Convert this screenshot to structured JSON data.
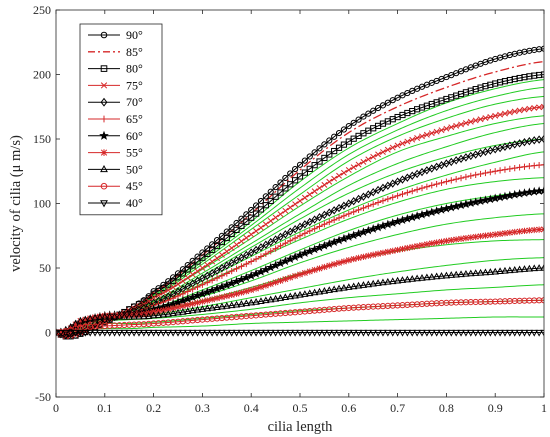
{
  "chart_data": {
    "type": "line",
    "xlabel": "cilia length",
    "ylabel": "velocity of cilia (μ m/s)",
    "xlim": [
      0,
      1
    ],
    "ylim": [
      -50,
      250
    ],
    "x_ticks": [
      0,
      0.1,
      0.2,
      0.3,
      0.4,
      0.5,
      0.6,
      0.7,
      0.8,
      0.9,
      1
    ],
    "x_tick_labels": [
      "0",
      "0.1",
      "0.2",
      "0.3",
      "0.4",
      "0.5",
      "0.6",
      "0.7",
      "0.8",
      "0.9",
      "1"
    ],
    "y_ticks": [
      -50,
      0,
      50,
      100,
      150,
      200,
      250
    ],
    "y_tick_labels": [
      "-50",
      "0",
      "50",
      "100",
      "150",
      "200",
      "250"
    ],
    "grid": false,
    "legend_position": "top-left",
    "series": [
      {
        "name": "90°",
        "color": "#000000",
        "marker": "circle",
        "line": "solid",
        "x": [
          0,
          0.02,
          0.05,
          0.1,
          0.15,
          0.2,
          0.3,
          0.4,
          0.5,
          0.6,
          0.7,
          0.8,
          0.9,
          1.0
        ],
        "y": [
          0,
          -3,
          -1,
          8,
          18,
          32,
          62,
          95,
          130,
          160,
          182,
          198,
          212,
          220
        ]
      },
      {
        "name": "85°",
        "color": "#d62728",
        "marker": "none",
        "line": "dashdot",
        "x": [
          0,
          0.02,
          0.05,
          0.1,
          0.15,
          0.2,
          0.3,
          0.4,
          0.5,
          0.6,
          0.7,
          0.8,
          0.9,
          1.0
        ],
        "y": [
          0,
          -3,
          -1,
          8,
          18,
          31,
          60,
          92,
          126,
          155,
          175,
          190,
          202,
          210
        ]
      },
      {
        "name": "80°",
        "color": "#000000",
        "marker": "square",
        "line": "solid",
        "x": [
          0,
          0.02,
          0.05,
          0.1,
          0.15,
          0.2,
          0.3,
          0.4,
          0.5,
          0.6,
          0.7,
          0.8,
          0.9,
          1.0
        ],
        "y": [
          0,
          -3,
          -1,
          8,
          18,
          30,
          58,
          89,
          121,
          148,
          167,
          181,
          193,
          200
        ]
      },
      {
        "name": "75°",
        "color": "#d62728",
        "marker": "x",
        "line": "solid",
        "x": [
          0,
          0.02,
          0.05,
          0.1,
          0.15,
          0.2,
          0.3,
          0.4,
          0.5,
          0.6,
          0.7,
          0.8,
          0.9,
          1.0
        ],
        "y": [
          0,
          -3,
          0,
          9,
          17,
          27,
          50,
          76,
          102,
          126,
          145,
          158,
          168,
          175
        ]
      },
      {
        "name": "70°",
        "color": "#000000",
        "marker": "diamond",
        "line": "solid",
        "x": [
          0,
          0.02,
          0.05,
          0.1,
          0.15,
          0.2,
          0.3,
          0.4,
          0.5,
          0.6,
          0.7,
          0.8,
          0.9,
          1.0
        ],
        "y": [
          0,
          -2,
          2,
          10,
          15,
          23,
          42,
          62,
          82,
          100,
          117,
          131,
          142,
          150
        ]
      },
      {
        "name": "65°",
        "color": "#d62728",
        "marker": "plus",
        "line": "solid",
        "x": [
          0,
          0.02,
          0.05,
          0.1,
          0.15,
          0.2,
          0.3,
          0.4,
          0.5,
          0.6,
          0.7,
          0.8,
          0.9,
          1.0
        ],
        "y": [
          0,
          -1,
          5,
          12,
          15,
          21,
          37,
          55,
          75,
          92,
          106,
          117,
          125,
          130
        ]
      },
      {
        "name": "60°",
        "color": "#000000",
        "marker": "star",
        "line": "solid",
        "x": [
          0,
          0.02,
          0.05,
          0.1,
          0.15,
          0.2,
          0.3,
          0.4,
          0.5,
          0.6,
          0.7,
          0.8,
          0.9,
          1.0
        ],
        "y": [
          0,
          0,
          8,
          13,
          14,
          18,
          30,
          44,
          60,
          74,
          86,
          96,
          104,
          110
        ]
      },
      {
        "name": "55°",
        "color": "#d62728",
        "marker": "asterisk",
        "line": "solid",
        "x": [
          0,
          0.02,
          0.05,
          0.1,
          0.15,
          0.2,
          0.3,
          0.4,
          0.5,
          0.6,
          0.7,
          0.8,
          0.9,
          1.0
        ],
        "y": [
          0,
          1,
          9,
          13,
          13,
          16,
          24,
          33,
          45,
          56,
          64,
          71,
          76,
          80
        ]
      },
      {
        "name": "50°",
        "color": "#000000",
        "marker": "triangle-up",
        "line": "solid",
        "x": [
          0,
          0.02,
          0.05,
          0.1,
          0.15,
          0.2,
          0.3,
          0.4,
          0.5,
          0.6,
          0.7,
          0.8,
          0.9,
          1.0
        ],
        "y": [
          0,
          2,
          9,
          12,
          12,
          13,
          18,
          23,
          29,
          35,
          40,
          44,
          47,
          50
        ]
      },
      {
        "name": "45°",
        "color": "#d62728",
        "marker": "circle",
        "line": "solid",
        "x": [
          0,
          0.02,
          0.05,
          0.1,
          0.15,
          0.2,
          0.3,
          0.4,
          0.5,
          0.6,
          0.7,
          0.8,
          0.9,
          1.0
        ],
        "y": [
          0,
          1,
          4,
          5,
          6,
          7,
          10,
          13,
          16,
          19,
          21,
          23,
          24,
          25
        ]
      },
      {
        "name": "40°",
        "color": "#000000",
        "marker": "triangle-down",
        "line": "solid",
        "x": [
          0,
          0.1,
          0.2,
          0.3,
          0.4,
          0.5,
          0.6,
          0.7,
          0.8,
          0.9,
          1.0
        ],
        "y": [
          0,
          0,
          0,
          0,
          0,
          0,
          0,
          0,
          0,
          0,
          0
        ]
      }
    ],
    "unlabeled_series": {
      "color": "#22cc22",
      "line": "solid",
      "x": [
        0,
        0.02,
        0.05,
        0.1,
        0.15,
        0.2,
        0.3,
        0.4,
        0.5,
        0.6,
        0.7,
        0.8,
        0.9,
        1.0
      ],
      "curves": [
        [
          0,
          -3,
          -1,
          8,
          18,
          30,
          57,
          86,
          117,
          143,
          162,
          178,
          189,
          196
        ],
        [
          0,
          -3,
          -1,
          8,
          18,
          29,
          55,
          83,
          112,
          138,
          157,
          172,
          183,
          190
        ],
        [
          0,
          -3,
          -1,
          8,
          18,
          28,
          53,
          80,
          107,
          133,
          152,
          166,
          177,
          183
        ],
        [
          0,
          -3,
          0,
          9,
          17,
          27,
          49,
          73,
          98,
          121,
          140,
          152,
          162,
          168
        ],
        [
          0,
          -2,
          1,
          9,
          16,
          25,
          46,
          69,
          92,
          114,
          131,
          144,
          155,
          162
        ],
        [
          0,
          -2,
          1,
          9,
          16,
          24,
          44,
          66,
          88,
          108,
          124,
          136,
          145,
          150
        ],
        [
          0,
          -2,
          2,
          10,
          15,
          22,
          40,
          59,
          78,
          95,
          110,
          122,
          132,
          140
        ],
        [
          0,
          -1,
          3,
          11,
          15,
          21,
          38,
          55,
          72,
          88,
          101,
          111,
          117,
          120
        ],
        [
          0,
          0,
          6,
          12,
          14,
          19,
          33,
          48,
          64,
          79,
          91,
          100,
          106,
          110
        ],
        [
          0,
          0,
          7,
          13,
          14,
          18,
          28,
          40,
          54,
          66,
          76,
          84,
          89,
          92
        ],
        [
          0,
          1,
          8,
          13,
          13,
          17,
          25,
          35,
          46,
          56,
          63,
          68,
          71,
          72
        ],
        [
          0,
          1,
          9,
          12,
          12,
          14,
          20,
          27,
          34,
          41,
          47,
          52,
          56,
          58
        ],
        [
          0,
          1,
          7,
          9,
          10,
          11,
          14,
          18,
          23,
          27,
          30,
          33,
          35,
          37
        ],
        [
          0,
          1,
          5,
          7,
          7,
          8,
          11,
          14,
          17,
          19,
          21,
          23,
          24,
          25
        ],
        [
          0,
          0,
          2,
          3,
          3,
          4,
          5,
          7,
          8,
          9,
          10,
          11,
          12,
          12
        ]
      ]
    }
  }
}
